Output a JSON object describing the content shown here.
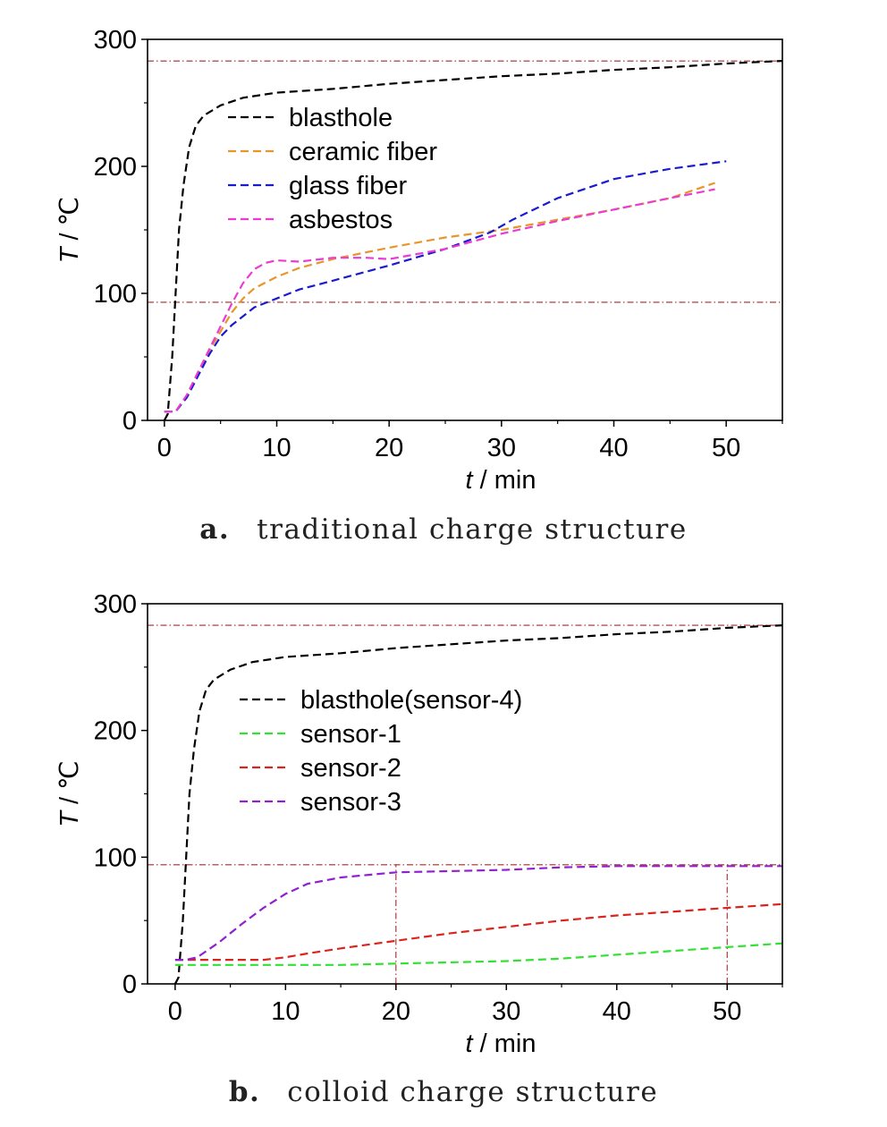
{
  "chart_data": [
    {
      "id": "a",
      "type": "line",
      "caption_label": "a.",
      "caption_text": "traditional charge structure",
      "xlabel_italic": "t",
      "xlabel_rest": " / min",
      "ylabel_italic": "T",
      "ylabel_rest": " / ℃",
      "xlim": [
        -1.5,
        55
      ],
      "ylim": [
        0,
        300
      ],
      "xticks": [
        0,
        10,
        20,
        30,
        40,
        50
      ],
      "yticks": [
        0,
        100,
        200,
        300
      ],
      "reference_lines": [
        {
          "orientation": "horizontal",
          "value": 283
        },
        {
          "orientation": "horizontal",
          "value": 93
        }
      ],
      "legend": "upper-left",
      "series": [
        {
          "name": "blasthole",
          "color": "#000000",
          "points": [
            [
              0,
              0
            ],
            [
              0.3,
              5
            ],
            [
              0.7,
              50
            ],
            [
              1,
              100
            ],
            [
              1.3,
              150
            ],
            [
              1.7,
              185
            ],
            [
              2.2,
              215
            ],
            [
              2.8,
              232
            ],
            [
              3.5,
              240
            ],
            [
              5,
              248
            ],
            [
              7,
              254
            ],
            [
              10,
              258
            ],
            [
              15,
              261
            ],
            [
              20,
              265
            ],
            [
              25,
              268
            ],
            [
              30,
              271
            ],
            [
              35,
              273
            ],
            [
              40,
              276
            ],
            [
              45,
              278
            ],
            [
              50,
              281
            ],
            [
              55,
              283
            ]
          ]
        },
        {
          "name": "ceramic fiber",
          "color": "#e8952a",
          "points": [
            [
              0,
              7
            ],
            [
              1,
              7
            ],
            [
              2,
              20
            ],
            [
              3,
              38
            ],
            [
              4,
              55
            ],
            [
              5,
              70
            ],
            [
              6,
              85
            ],
            [
              7,
              96
            ],
            [
              8,
              104
            ],
            [
              10,
              113
            ],
            [
              12,
              120
            ],
            [
              15,
              127
            ],
            [
              20,
              136
            ],
            [
              25,
              144
            ],
            [
              30,
              150
            ],
            [
              35,
              158
            ],
            [
              40,
              166
            ],
            [
              45,
              175
            ],
            [
              49,
              187
            ]
          ]
        },
        {
          "name": "glass fiber",
          "color": "#1a1ad0",
          "points": [
            [
              0,
              7
            ],
            [
              1,
              7
            ],
            [
              2,
              18
            ],
            [
              3,
              35
            ],
            [
              4,
              52
            ],
            [
              5,
              66
            ],
            [
              6,
              75
            ],
            [
              7,
              82
            ],
            [
              8,
              89
            ],
            [
              10,
              96
            ],
            [
              12,
              103
            ],
            [
              15,
              110
            ],
            [
              20,
              122
            ],
            [
              25,
              135
            ],
            [
              29,
              148
            ],
            [
              31,
              158
            ],
            [
              35,
              175
            ],
            [
              40,
              190
            ],
            [
              45,
              198
            ],
            [
              50,
              204
            ]
          ]
        },
        {
          "name": "asbestos",
          "color": "#ea3bd4",
          "points": [
            [
              0,
              7
            ],
            [
              1,
              7
            ],
            [
              2,
              20
            ],
            [
              3,
              38
            ],
            [
              4,
              56
            ],
            [
              5,
              74
            ],
            [
              6,
              92
            ],
            [
              7,
              108
            ],
            [
              8,
              119
            ],
            [
              9,
              124
            ],
            [
              10,
              126
            ],
            [
              12,
              125
            ],
            [
              15,
              128
            ],
            [
              18,
              128
            ],
            [
              20,
              127
            ],
            [
              25,
              135
            ],
            [
              30,
              147
            ],
            [
              35,
              157
            ],
            [
              40,
              166
            ],
            [
              45,
              175
            ],
            [
              49,
              182
            ]
          ]
        }
      ]
    },
    {
      "id": "b",
      "type": "line",
      "caption_label": "b.",
      "caption_text": "colloid charge structure",
      "xlabel_italic": "t",
      "xlabel_rest": " / min",
      "ylabel_italic": "T",
      "ylabel_rest": " / ℃",
      "xlim": [
        -2.5,
        55
      ],
      "ylim": [
        0,
        300
      ],
      "xticks": [
        0,
        10,
        20,
        30,
        40,
        50
      ],
      "yticks": [
        0,
        100,
        200,
        300
      ],
      "reference_lines": [
        {
          "orientation": "horizontal",
          "value": 283
        },
        {
          "orientation": "horizontal",
          "value": 94
        },
        {
          "orientation": "vertical",
          "value": 20,
          "from": 0,
          "to": 94
        },
        {
          "orientation": "vertical",
          "value": 50,
          "from": 0,
          "to": 94
        }
      ],
      "legend": "upper-left",
      "series": [
        {
          "name": "blasthole(sensor-4)",
          "color": "#000000",
          "points": [
            [
              0,
              0
            ],
            [
              0.3,
              5
            ],
            [
              0.7,
              50
            ],
            [
              1,
              100
            ],
            [
              1.3,
              150
            ],
            [
              1.7,
              185
            ],
            [
              2.2,
              215
            ],
            [
              2.8,
              232
            ],
            [
              3.5,
              240
            ],
            [
              5,
              248
            ],
            [
              7,
              254
            ],
            [
              10,
              258
            ],
            [
              15,
              261
            ],
            [
              20,
              265
            ],
            [
              25,
              268
            ],
            [
              30,
              271
            ],
            [
              35,
              273
            ],
            [
              40,
              276
            ],
            [
              45,
              278
            ],
            [
              50,
              281
            ],
            [
              55,
              283
            ]
          ]
        },
        {
          "name": "sensor-1",
          "color": "#33e033",
          "points": [
            [
              0,
              15
            ],
            [
              5,
              15
            ],
            [
              10,
              15
            ],
            [
              15,
              15
            ],
            [
              20,
              16
            ],
            [
              25,
              17
            ],
            [
              30,
              18
            ],
            [
              35,
              20
            ],
            [
              40,
              23
            ],
            [
              45,
              26
            ],
            [
              50,
              29
            ],
            [
              55,
              32
            ]
          ]
        },
        {
          "name": "sensor-2",
          "color": "#d9251f",
          "points": [
            [
              0,
              19
            ],
            [
              5,
              19
            ],
            [
              8,
              19
            ],
            [
              10,
              21
            ],
            [
              12,
              24
            ],
            [
              15,
              28
            ],
            [
              20,
              34
            ],
            [
              25,
              40
            ],
            [
              30,
              45
            ],
            [
              35,
              50
            ],
            [
              40,
              54
            ],
            [
              45,
              57
            ],
            [
              50,
              60
            ],
            [
              55,
              63
            ]
          ]
        },
        {
          "name": "sensor-3",
          "color": "#9020d0",
          "points": [
            [
              0,
              19
            ],
            [
              1,
              19
            ],
            [
              2,
              21
            ],
            [
              4,
              33
            ],
            [
              6,
              47
            ],
            [
              8,
              60
            ],
            [
              10,
              71
            ],
            [
              12,
              79
            ],
            [
              15,
              84
            ],
            [
              20,
              88
            ],
            [
              25,
              89
            ],
            [
              30,
              90
            ],
            [
              35,
              92
            ],
            [
              40,
              93
            ],
            [
              45,
              93
            ],
            [
              50,
              93
            ],
            [
              55,
              93
            ]
          ]
        }
      ]
    }
  ]
}
